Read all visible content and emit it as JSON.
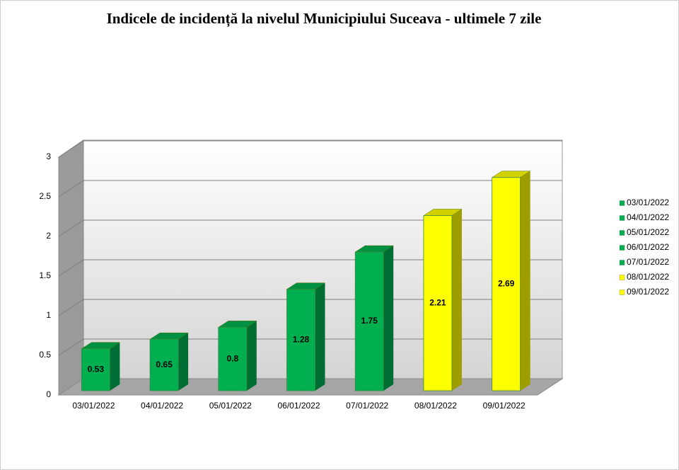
{
  "chart_data": {
    "type": "bar3d",
    "title": "Indicele de incidență la nivelul Municipiului Suceava - ultimele 7 zile",
    "categories": [
      "03/01/2022",
      "04/01/2022",
      "05/01/2022",
      "06/01/2022",
      "07/01/2022",
      "08/01/2022",
      "09/01/2022"
    ],
    "values": [
      0.53,
      0.65,
      0.8,
      1.28,
      1.75,
      2.21,
      2.69
    ],
    "colors": [
      "#00b050",
      "#00b050",
      "#00b050",
      "#00b050",
      "#00b050",
      "#ffff00",
      "#ffff00"
    ],
    "ylim": [
      0,
      3
    ],
    "yticks": [
      0,
      0.5,
      1,
      1.5,
      2,
      2.5,
      3
    ],
    "grid": true,
    "legend": "right"
  }
}
